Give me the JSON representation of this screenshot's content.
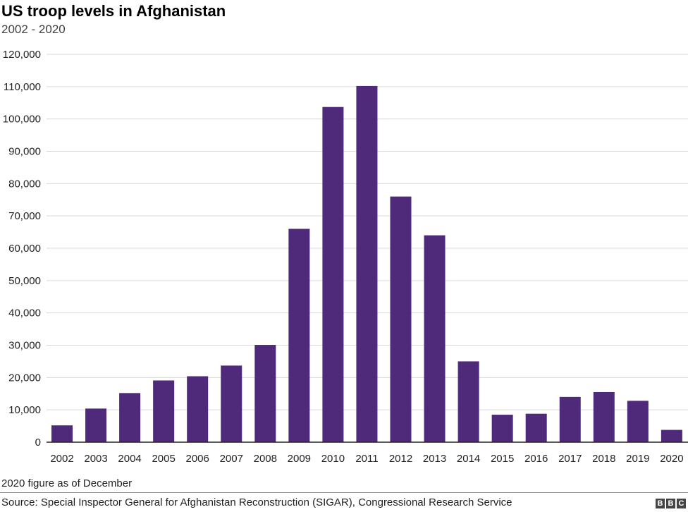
{
  "chart_data": {
    "type": "bar",
    "title": "US troop levels in Afghanistan",
    "subtitle": "2002 - 2020",
    "xlabel": "",
    "ylabel": "",
    "categories": [
      "2002",
      "2003",
      "2004",
      "2005",
      "2006",
      "2007",
      "2008",
      "2009",
      "2010",
      "2011",
      "2012",
      "2013",
      "2014",
      "2015",
      "2016",
      "2017",
      "2018",
      "2019",
      "2020"
    ],
    "values": [
      5200,
      10400,
      15200,
      19100,
      20400,
      23700,
      30100,
      66000,
      103700,
      110200,
      76000,
      64000,
      25000,
      8500,
      8800,
      14000,
      15500,
      12800,
      3800
    ],
    "ylim": [
      0,
      120000
    ],
    "yticks": [
      0,
      10000,
      20000,
      30000,
      40000,
      50000,
      60000,
      70000,
      80000,
      90000,
      100000,
      110000,
      120000
    ],
    "ytick_labels": [
      "0",
      "10,000",
      "20,000",
      "30,000",
      "40,000",
      "50,000",
      "60,000",
      "70,000",
      "80,000",
      "90,000",
      "100,000",
      "110,000",
      "120,000"
    ],
    "grid": true,
    "bar_color": "#4f2a7a",
    "grid_color": "#d9d9d9",
    "axis_color": "#222222"
  },
  "note": "2020 figure as of December",
  "source": "Source: Special Inspector General for Afghanistan Reconstruction (SIGAR), Congressional Research Service",
  "logo": {
    "letters": [
      "B",
      "B",
      "C"
    ]
  }
}
